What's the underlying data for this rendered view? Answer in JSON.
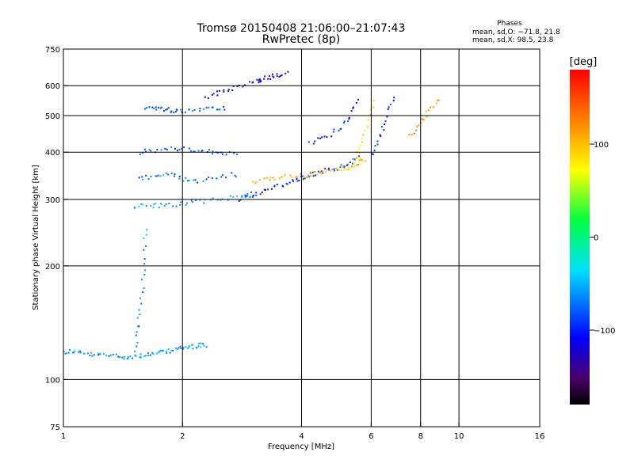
{
  "chart_data": {
    "type": "scatter",
    "title": "Tromsø 20150408 21:06:00–21:07:43",
    "subtitle": "RwPretec (8p)",
    "xlabel": "Frequency [MHz]",
    "ylabel": "Stationary phase Virtual Height [km]",
    "x_scale": "log",
    "y_scale": "log",
    "xlim": [
      1,
      16
    ],
    "ylim": [
      75,
      750
    ],
    "x_ticks": [
      1,
      2,
      4,
      6,
      8,
      10,
      16
    ],
    "x_tick_labels": [
      "1",
      "2",
      "4",
      "6",
      "8",
      "10",
      "16"
    ],
    "y_ticks": [
      75,
      100,
      200,
      300,
      400,
      500,
      600,
      750
    ],
    "y_tick_labels": [
      "75",
      "100",
      "200",
      "300",
      "400",
      "500",
      "600",
      "750"
    ],
    "grid": true,
    "stats": {
      "header": "Phases",
      "line_o": "mean, sd,O: −71.8, 21.8",
      "line_x": "mean, sd,X:  98.5, 23.8"
    },
    "colorbar": {
      "label": "[deg]",
      "range": [
        -180,
        180
      ],
      "ticks": [
        100,
        0,
        -100
      ],
      "tick_labels": [
        "100",
        "0",
        "−100"
      ]
    },
    "traces": [
      {
        "x": [
          1.0,
          1.05,
          1.12,
          1.2,
          1.3,
          1.4,
          1.5,
          1.6,
          1.7,
          1.8,
          1.9,
          2.0,
          2.1,
          2.2,
          2.3
        ],
        "y": [
          118,
          119,
          117,
          116,
          116,
          115,
          115,
          116,
          117,
          118,
          120,
          121,
          122,
          123,
          123
        ],
        "phase": -60
      },
      {
        "x": [
          1.52,
          1.55,
          1.58,
          1.6,
          1.62
        ],
        "y": [
          120,
          140,
          170,
          210,
          260
        ],
        "phase": -65
      },
      {
        "x": [
          1.5,
          1.65,
          1.8,
          2.0,
          2.2,
          2.5,
          2.8,
          3.0
        ],
        "y": [
          287,
          288,
          289,
          292,
          295,
          300,
          306,
          312
        ],
        "phase": -55
      },
      {
        "x": [
          2.8,
          3.0,
          3.2,
          3.5,
          3.8,
          4.0,
          4.3,
          4.6,
          5.0,
          5.3,
          5.6
        ],
        "y": [
          300,
          308,
          315,
          325,
          335,
          342,
          350,
          358,
          365,
          375,
          390
        ],
        "phase": -90
      },
      {
        "x": [
          3.0,
          3.3,
          3.6,
          4.0,
          4.3,
          4.6,
          5.0,
          5.3,
          5.6,
          5.8
        ],
        "y": [
          330,
          340,
          345,
          345,
          350,
          356,
          360,
          365,
          375,
          385
        ],
        "phase": 105
      },
      {
        "x": [
          1.55,
          1.7,
          1.85,
          2.0,
          2.2,
          2.5,
          2.8
        ],
        "y": [
          340,
          345,
          350,
          340,
          335,
          345,
          350
        ],
        "phase": -70
      },
      {
        "x": [
          1.55,
          1.7,
          1.9,
          2.1,
          2.3,
          2.5,
          2.8
        ],
        "y": [
          400,
          405,
          410,
          405,
          400,
          400,
          398
        ],
        "phase": -80
      },
      {
        "x": [
          1.6,
          1.7,
          1.8,
          1.9,
          2.0,
          2.2,
          2.4,
          2.6
        ],
        "y": [
          520,
          525,
          520,
          515,
          515,
          520,
          525,
          525
        ],
        "phase": -75
      },
      {
        "x": [
          2.3,
          2.5,
          2.7,
          3.0,
          3.2
        ],
        "y": [
          560,
          575,
          590,
          610,
          620
        ],
        "phase": -110
      },
      {
        "x": [
          3.1,
          3.3,
          3.5,
          3.7
        ],
        "y": [
          620,
          630,
          640,
          645
        ],
        "phase": -120
      },
      {
        "x": [
          4.2,
          4.6,
          5.0,
          5.3,
          5.6
        ],
        "y": [
          420,
          440,
          460,
          500,
          560
        ],
        "phase": -100
      },
      {
        "x": [
          5.5,
          5.7,
          5.9,
          6.1
        ],
        "y": [
          380,
          430,
          480,
          560
        ],
        "phase": 90
      },
      {
        "x": [
          6.0,
          6.3,
          6.6,
          6.9
        ],
        "y": [
          390,
          440,
          500,
          580
        ],
        "phase": -95
      },
      {
        "x": [
          7.5,
          8.0,
          8.5,
          9.0
        ],
        "y": [
          440,
          480,
          520,
          560
        ],
        "phase": 115
      }
    ]
  }
}
